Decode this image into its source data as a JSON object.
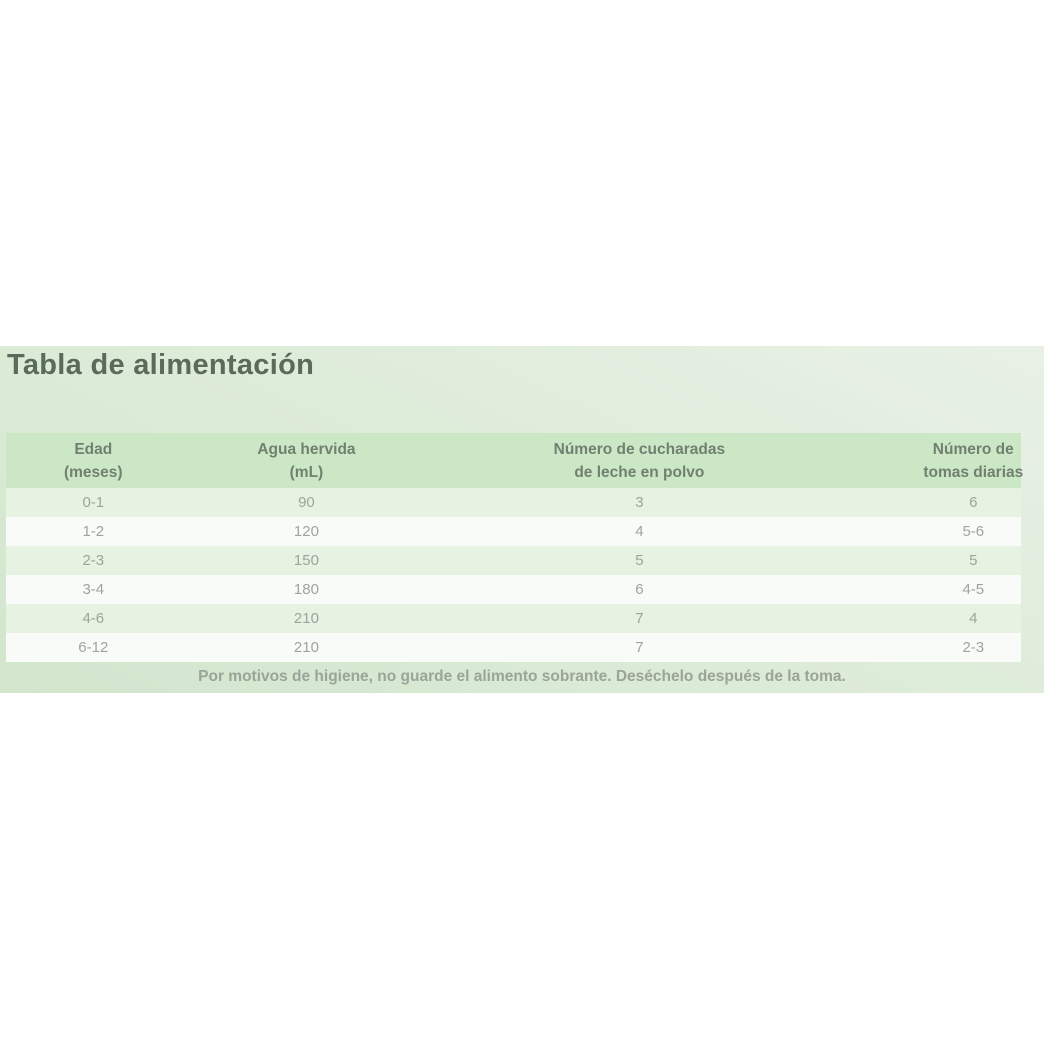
{
  "chart_data": {
    "type": "table",
    "title": "Tabla de alimentación",
    "columns": [
      {
        "line1": "Edad",
        "line2": "(meses)"
      },
      {
        "line1": "Agua hervida",
        "line2": "(mL)"
      },
      {
        "line1": "Número de cucharadas",
        "line2": "de leche en polvo"
      },
      {
        "line1": "Número de",
        "line2": "tomas diarias"
      }
    ],
    "rows": [
      [
        "0-1",
        "90",
        "3",
        "6"
      ],
      [
        "1-2",
        "120",
        "4",
        "5-6"
      ],
      [
        "2-3",
        "150",
        "5",
        "5"
      ],
      [
        "3-4",
        "180",
        "6",
        "4-5"
      ],
      [
        "4-6",
        "210",
        "7",
        "4"
      ],
      [
        "6-12",
        "210",
        "7",
        "2-3"
      ]
    ],
    "footnote": "Por motivos de higiene, no guarde el alimento sobrante. Deséchelo después de la toma."
  },
  "colors": {
    "panel_gradient_light": "#e9f1e6",
    "panel_gradient_mid": "#dbead6",
    "panel_gradient_dark": "#d2e5cd",
    "header_row_bg": "#cbe7c6",
    "row_stripe_green": "#e6f2e2",
    "row_stripe_white": "#f9fbf8",
    "title_text": "#5a6b5b",
    "header_text": "#71806f",
    "cell_text": "#9da49d",
    "footnote_text": "#9aa499",
    "page_bg": "#ffffff"
  }
}
